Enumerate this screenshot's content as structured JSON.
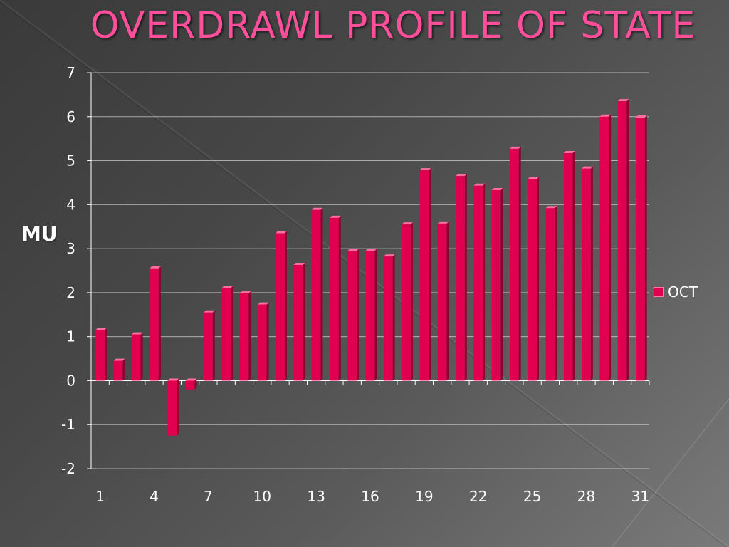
{
  "page": {
    "title": "OVERDRAWL PROFILE OF STATE",
    "ylabel": "MU"
  },
  "chart_data": {
    "type": "bar",
    "title": "OVERDRAWL PROFILE OF STATE",
    "xlabel": "",
    "ylabel": "MU",
    "ylim": [
      -2,
      7
    ],
    "yticks": [
      -2,
      -1,
      0,
      1,
      2,
      3,
      4,
      5,
      6,
      7
    ],
    "x_tick_labels": [
      "1",
      "4",
      "7",
      "10",
      "13",
      "16",
      "19",
      "22",
      "25",
      "28",
      "31"
    ],
    "categories": [
      "1",
      "2",
      "3",
      "4",
      "5",
      "6",
      "7",
      "8",
      "9",
      "10",
      "11",
      "12",
      "13",
      "14",
      "15",
      "16",
      "17",
      "18",
      "19",
      "20",
      "21",
      "22",
      "23",
      "24",
      "25",
      "26",
      "27",
      "28",
      "29",
      "30",
      "31"
    ],
    "series": [
      {
        "name": "OCT",
        "color": "#e0004f",
        "values": [
          1.15,
          0.45,
          1.05,
          2.55,
          -1.25,
          -0.2,
          1.55,
          2.1,
          1.98,
          1.73,
          3.35,
          2.63,
          3.88,
          3.7,
          2.95,
          2.95,
          2.82,
          3.55,
          4.78,
          3.57,
          4.65,
          4.43,
          4.33,
          5.27,
          4.58,
          3.92,
          5.17,
          4.82,
          6.0,
          6.35,
          5.98
        ]
      }
    ],
    "grid": true,
    "legend_position": "right"
  }
}
